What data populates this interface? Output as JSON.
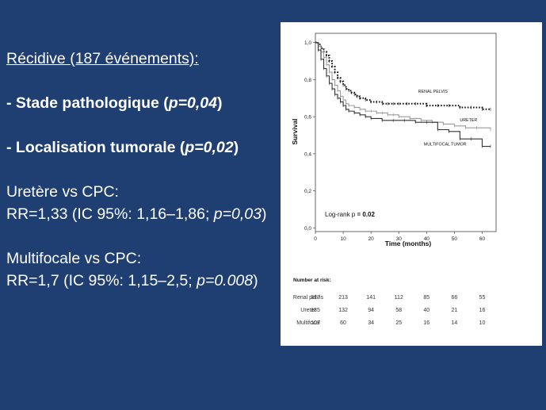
{
  "left": {
    "title": "Récidive (187 événements):",
    "stade_prefix": "- Stade pathologique (",
    "stade_p": "p=0,04",
    "stade_suffix": ")",
    "loc_prefix": "- Localisation tumorale (",
    "loc_p": "p=0,02",
    "loc_suffix": ")",
    "ureter_title": "Uretère vs CPC:",
    "ureter_rr_prefix": "RR=1,33 (IC 95%: 1,16–1,86; ",
    "ureter_rr_p": "p=0,03",
    "ureter_rr_suffix": ")",
    "multi_title": "Multifocale vs CPC:",
    "multi_rr_prefix": "RR=1,7 (IC 95%: 1,15–2,5; ",
    "multi_rr_p": "p=0.008",
    "multi_rr_suffix": ")"
  },
  "chart_data": {
    "type": "line",
    "xlabel": "Time (months)",
    "ylabel": "Survival",
    "xlim": [
      0,
      65
    ],
    "ylim": [
      -0.02,
      1.05
    ],
    "xticks": [
      0,
      10,
      20,
      30,
      40,
      50,
      60
    ],
    "yticks": [
      0.0,
      0.2,
      0.4,
      0.6,
      0.8,
      1.0
    ],
    "ytick_labels": [
      "0,0",
      "0,2",
      "0,4",
      "0,6",
      "0,8",
      "1,0"
    ],
    "annotation_prefix": "Log-rank p ",
    "annotation_value": "= 0.02",
    "colors": {
      "renal": "#111111",
      "ureter": "#9a9a9a",
      "multi": "#333333"
    },
    "series": [
      {
        "name": "RENAL PELVIS",
        "style": "dotted",
        "x": [
          0,
          1,
          2,
          3,
          4,
          5,
          6,
          7,
          8,
          9,
          10,
          11,
          12,
          13,
          14,
          15,
          16,
          18,
          20,
          22,
          24,
          26,
          28,
          30,
          33,
          36,
          40,
          44,
          48,
          52,
          56,
          60,
          63
        ],
        "y": [
          1.0,
          0.99,
          0.97,
          0.95,
          0.93,
          0.9,
          0.87,
          0.84,
          0.81,
          0.79,
          0.77,
          0.75,
          0.74,
          0.73,
          0.72,
          0.71,
          0.7,
          0.69,
          0.68,
          0.68,
          0.67,
          0.67,
          0.67,
          0.67,
          0.67,
          0.67,
          0.66,
          0.66,
          0.66,
          0.65,
          0.65,
          0.64,
          0.64
        ]
      },
      {
        "name": "URETER",
        "style": "solid",
        "x": [
          0,
          1,
          2,
          3,
          4,
          5,
          6,
          7,
          8,
          9,
          10,
          11,
          12,
          14,
          16,
          18,
          20,
          22,
          24,
          26,
          28,
          30,
          34,
          38,
          42,
          46,
          50,
          54,
          58,
          63
        ],
        "y": [
          1.0,
          0.98,
          0.95,
          0.92,
          0.88,
          0.84,
          0.8,
          0.77,
          0.74,
          0.71,
          0.69,
          0.67,
          0.66,
          0.65,
          0.64,
          0.63,
          0.63,
          0.62,
          0.62,
          0.61,
          0.61,
          0.6,
          0.59,
          0.58,
          0.57,
          0.56,
          0.55,
          0.54,
          0.54,
          0.53
        ]
      },
      {
        "name": "MULTIFOCAL TUMOR",
        "style": "solid",
        "x": [
          0,
          1,
          2,
          3,
          4,
          5,
          6,
          7,
          8,
          9,
          10,
          11,
          12,
          14,
          16,
          18,
          20,
          24,
          28,
          32,
          36,
          40,
          44,
          48,
          52,
          56,
          60,
          63
        ],
        "y": [
          1.0,
          0.96,
          0.91,
          0.86,
          0.82,
          0.78,
          0.75,
          0.72,
          0.7,
          0.68,
          0.66,
          0.64,
          0.63,
          0.62,
          0.61,
          0.6,
          0.59,
          0.58,
          0.58,
          0.58,
          0.57,
          0.57,
          0.53,
          0.52,
          0.48,
          0.48,
          0.44,
          0.44
        ]
      }
    ],
    "number_at_risk": {
      "title": "Number at risk:",
      "rows": [
        {
          "label": "Renal pelvis",
          "values": [
            "317",
            "213",
            "141",
            "112",
            "85",
            "66",
            "55"
          ]
        },
        {
          "label": "Ureter",
          "values": [
            "185",
            "132",
            "94",
            "58",
            "40",
            "21",
            "16"
          ]
        },
        {
          "label": "Multifocal",
          "values": [
            "107",
            "60",
            "34",
            "25",
            "16",
            "14",
            "10"
          ]
        }
      ]
    }
  }
}
